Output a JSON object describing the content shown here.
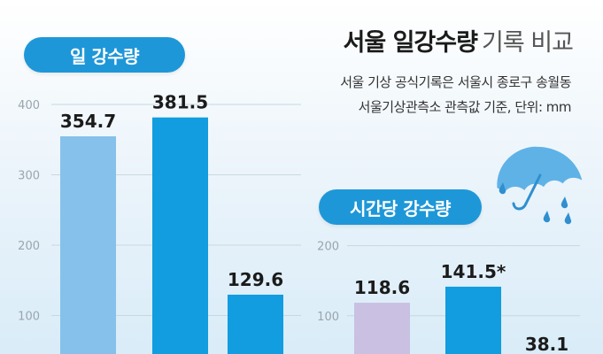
{
  "title": {
    "bold": "서울 일강수량",
    "light": "기록 비교"
  },
  "subtitle_lines": [
    "서울 기상 공식기록은 서울시 종로구 송월동",
    "서울기상관측소 관측값 기준, 단위: mm"
  ],
  "colors": {
    "accent": "#1e97d8",
    "bar_light_blue": "#85c1ea",
    "bar_blue": "#119ddf",
    "bar_purple": "#c9c0e2",
    "grid": "#c7d7e3"
  },
  "icons": [
    "umbrella-rain-icon"
  ],
  "chart_data": [
    {
      "type": "bar",
      "title": "일 강수량",
      "ylim": [
        0,
        400
      ],
      "yticks": [
        100,
        200,
        300,
        400
      ],
      "values": [
        354.7,
        381.5,
        129.6
      ],
      "labels": [
        "354.7",
        "381.5",
        "129.6"
      ],
      "bar_colors": [
        "#85c1ea",
        "#119ddf",
        "#119ddf"
      ]
    },
    {
      "type": "bar",
      "title": "시간당 강수량",
      "ylim": [
        0,
        200
      ],
      "yticks": [
        100,
        200
      ],
      "values": [
        118.6,
        141.5,
        38.1
      ],
      "labels": [
        "118.6",
        "141.5*",
        "38.1"
      ],
      "bar_colors": [
        "#c9c0e2",
        "#119ddf",
        "#119ddf"
      ]
    }
  ]
}
